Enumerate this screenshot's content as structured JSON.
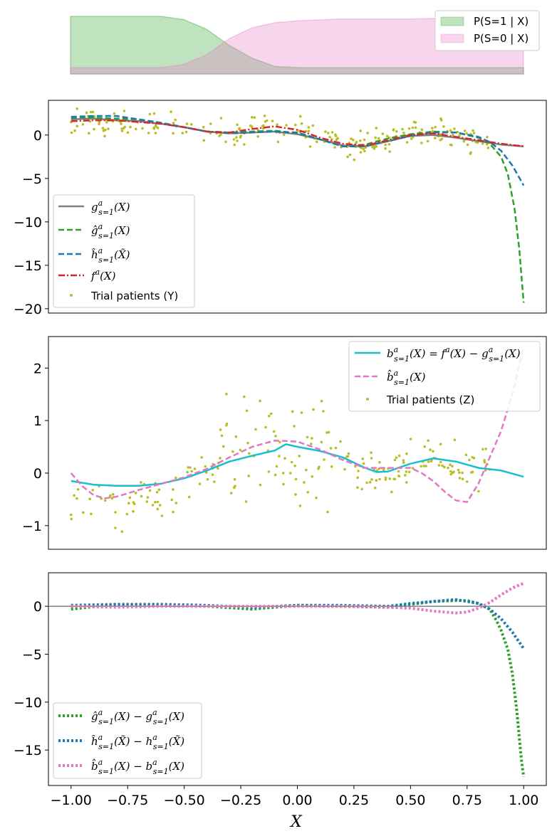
{
  "chart_data": [
    {
      "type": "area",
      "panel": "top",
      "x_range": [
        -1.0,
        1.0
      ],
      "ylim": [
        0,
        1
      ],
      "legend_placement": "top-right",
      "series": [
        {
          "name": "P(S=1 | X)",
          "color": "#2ca02c",
          "x": [
            -1.0,
            -0.8,
            -0.6,
            -0.5,
            -0.4,
            -0.3,
            -0.2,
            -0.1,
            0.0,
            0.2,
            0.5,
            0.8,
            1.0
          ],
          "y": [
            0.9,
            0.9,
            0.9,
            0.85,
            0.7,
            0.45,
            0.25,
            0.12,
            0.1,
            0.1,
            0.1,
            0.1,
            0.1
          ]
        },
        {
          "name": "P(S=0 | X)",
          "color": "#e377c2",
          "x": [
            -1.0,
            -0.8,
            -0.6,
            -0.5,
            -0.4,
            -0.3,
            -0.2,
            -0.1,
            0.0,
            0.2,
            0.5,
            0.8,
            1.0
          ],
          "y": [
            0.1,
            0.1,
            0.1,
            0.15,
            0.3,
            0.55,
            0.72,
            0.8,
            0.83,
            0.86,
            0.86,
            0.88,
            0.9
          ]
        }
      ],
      "overlap_color": "#cfc5c2"
    },
    {
      "type": "line",
      "panel": "second",
      "xlim": [
        -1.1,
        1.1
      ],
      "ylim": [
        -20.5,
        4
      ],
      "yticks": [
        -20,
        -15,
        -10,
        -5,
        0
      ],
      "ytick_labels": [
        "−20",
        "−15",
        "−10",
        "−5",
        "0"
      ],
      "legend_placement": "lower-left",
      "series": [
        {
          "name": "g^a_{s=1}(X)",
          "legend": "g",
          "color": "#7f7f7f",
          "style": "solid",
          "x": [
            -1.0,
            -0.9,
            -0.8,
            -0.7,
            -0.6,
            -0.5,
            -0.4,
            -0.3,
            -0.2,
            -0.1,
            0.0,
            0.1,
            0.2,
            0.3,
            0.4,
            0.5,
            0.6,
            0.7,
            0.8,
            0.9,
            1.0
          ],
          "y": [
            1.8,
            1.9,
            1.7,
            1.6,
            1.3,
            0.9,
            0.4,
            0.2,
            0.3,
            0.4,
            0.1,
            -0.5,
            -1.2,
            -1.3,
            -0.7,
            -0.1,
            0.0,
            -0.3,
            -0.7,
            -1.1,
            -1.3
          ]
        },
        {
          "name": "ĝ^a_{s=1}(X)",
          "legend": "ghat",
          "color": "#2ca02c",
          "style": "dashed",
          "x": [
            -1.0,
            -0.9,
            -0.8,
            -0.7,
            -0.6,
            -0.5,
            -0.4,
            -0.3,
            -0.2,
            -0.1,
            0.0,
            0.1,
            0.2,
            0.3,
            0.4,
            0.5,
            0.6,
            0.7,
            0.8,
            0.85,
            0.9,
            0.93,
            0.96,
            0.98,
            1.0
          ],
          "y": [
            2.0,
            2.0,
            1.9,
            1.8,
            1.4,
            0.9,
            0.4,
            0.3,
            0.4,
            0.5,
            0.2,
            -0.5,
            -1.3,
            -1.1,
            -0.4,
            0.1,
            0.4,
            0.3,
            -0.3,
            -1.0,
            -2.5,
            -4.5,
            -8.5,
            -13.0,
            -19.3
          ]
        },
        {
          "name": "ĥ^a_{s=1}(X̃)",
          "legend": "hhat",
          "color": "#1f77b4",
          "style": "dashed",
          "x": [
            -1.0,
            -0.9,
            -0.8,
            -0.7,
            -0.6,
            -0.5,
            -0.4,
            -0.3,
            -0.2,
            -0.1,
            0.0,
            0.1,
            0.2,
            0.3,
            0.4,
            0.5,
            0.6,
            0.7,
            0.8,
            0.85,
            0.9,
            0.95,
            1.0
          ],
          "y": [
            2.1,
            2.2,
            2.2,
            1.8,
            1.4,
            0.9,
            0.4,
            0.2,
            0.3,
            0.4,
            0.3,
            -0.5,
            -1.3,
            -1.3,
            -0.7,
            -0.1,
            0.3,
            0.3,
            -0.2,
            -0.8,
            -1.8,
            -3.5,
            -5.8
          ]
        },
        {
          "name": "f^a(X)",
          "legend": "f",
          "color": "#d62728",
          "style": "dashdot",
          "x": [
            -1.0,
            -0.9,
            -0.8,
            -0.7,
            -0.6,
            -0.5,
            -0.4,
            -0.3,
            -0.2,
            -0.1,
            0.0,
            0.1,
            0.2,
            0.3,
            0.4,
            0.5,
            0.6,
            0.7,
            0.8,
            0.9,
            1.0
          ],
          "y": [
            1.6,
            1.7,
            1.7,
            1.5,
            1.3,
            0.9,
            0.4,
            0.3,
            0.7,
            1.0,
            0.6,
            -0.3,
            -1.0,
            -1.2,
            -0.6,
            0.0,
            0.2,
            -0.2,
            -0.6,
            -1.0,
            -1.3
          ]
        }
      ],
      "scatter": {
        "name": "Trial patients (Y)",
        "color": "#bcbd22",
        "x_range": [
          -1.0,
          0.85
        ],
        "seed": 7
      }
    },
    {
      "type": "line",
      "panel": "third",
      "xlim": [
        -1.1,
        1.1
      ],
      "ylim": [
        -1.45,
        2.6
      ],
      "yticks": [
        -1,
        0,
        1,
        2
      ],
      "ytick_labels": [
        "−1",
        "0",
        "1",
        "2"
      ],
      "legend_placement": "top-right",
      "series": [
        {
          "name": "b^a_{s=1}(X) = f^a(X) − g^a_{s=1}(X)",
          "legend": "b",
          "color": "#17becf",
          "style": "solid",
          "x": [
            -1.0,
            -0.9,
            -0.8,
            -0.7,
            -0.6,
            -0.5,
            -0.4,
            -0.3,
            -0.2,
            -0.1,
            -0.05,
            0.0,
            0.1,
            0.2,
            0.3,
            0.35,
            0.4,
            0.5,
            0.6,
            0.7,
            0.8,
            0.9,
            1.0
          ],
          "y": [
            -0.15,
            -0.22,
            -0.24,
            -0.24,
            -0.2,
            -0.1,
            0.05,
            0.22,
            0.33,
            0.43,
            0.55,
            0.5,
            0.42,
            0.3,
            0.1,
            0.02,
            0.03,
            0.18,
            0.28,
            0.22,
            0.1,
            0.05,
            -0.07
          ]
        },
        {
          "name": "b̂^a_{s=1}(X)",
          "legend": "bhat",
          "color": "#e377c2",
          "style": "dashed",
          "x": [
            -1.0,
            -0.95,
            -0.9,
            -0.85,
            -0.8,
            -0.7,
            -0.6,
            -0.5,
            -0.4,
            -0.3,
            -0.2,
            -0.1,
            0.0,
            0.1,
            0.2,
            0.3,
            0.4,
            0.5,
            0.55,
            0.6,
            0.65,
            0.7,
            0.75,
            0.8,
            0.85,
            0.9,
            0.95,
            1.0
          ],
          "y": [
            0.0,
            -0.25,
            -0.42,
            -0.48,
            -0.45,
            -0.32,
            -0.2,
            -0.08,
            0.08,
            0.3,
            0.5,
            0.62,
            0.6,
            0.45,
            0.25,
            0.1,
            0.1,
            0.1,
            0.0,
            -0.15,
            -0.35,
            -0.52,
            -0.55,
            -0.2,
            0.3,
            0.8,
            1.5,
            2.4
          ]
        }
      ],
      "scatter": {
        "name": "Trial patients (Z)",
        "color": "#bcbd22",
        "x_range": [
          -1.0,
          0.85
        ],
        "seed": 11
      }
    },
    {
      "type": "line",
      "panel": "bottom",
      "xlim": [
        -1.1,
        1.1
      ],
      "ylim": [
        -18.7,
        3.5
      ],
      "yticks": [
        -15,
        -10,
        -5,
        0
      ],
      "ytick_labels": [
        "−15",
        "−10",
        "−5",
        "0"
      ],
      "xticks": [
        -1.0,
        -0.75,
        -0.5,
        -0.25,
        0.0,
        0.25,
        0.5,
        0.75,
        1.0
      ],
      "xtick_labels": [
        "−1.00",
        "−0.75",
        "−0.50",
        "−0.25",
        "0.00",
        "0.25",
        "0.50",
        "0.75",
        "1.00"
      ],
      "xlabel": "X",
      "hline": 0,
      "legend_placement": "lower-left",
      "series": [
        {
          "name": "ĝ^a_{s=1}(X) − g^a_{s=1}(X)",
          "legend": "gdiff",
          "color": "#2ca02c",
          "style": "dotted",
          "x": [
            -1.0,
            -0.8,
            -0.6,
            -0.4,
            -0.2,
            0.0,
            0.2,
            0.4,
            0.5,
            0.6,
            0.7,
            0.75,
            0.8,
            0.85,
            0.88,
            0.9,
            0.93,
            0.95,
            0.97,
            0.99,
            1.0
          ],
          "y": [
            -0.3,
            0.2,
            0.1,
            0.0,
            -0.3,
            0.1,
            0.0,
            -0.1,
            0.2,
            0.5,
            0.6,
            0.6,
            0.3,
            -0.3,
            -1.5,
            -2.5,
            -4.5,
            -7.0,
            -11.0,
            -16.0,
            -17.8
          ]
        },
        {
          "name": "ĥ^a_{s=1}(X̃) − h^a_{s=1}(X̃)",
          "legend": "hdiff",
          "color": "#1f77b4",
          "style": "dotted",
          "x": [
            -1.0,
            -0.8,
            -0.6,
            -0.4,
            -0.2,
            0.0,
            0.2,
            0.4,
            0.5,
            0.6,
            0.7,
            0.75,
            0.8,
            0.85,
            0.9,
            0.95,
            1.0
          ],
          "y": [
            0.1,
            0.2,
            0.2,
            0.1,
            -0.1,
            0.1,
            0.1,
            0.0,
            0.3,
            0.5,
            0.7,
            0.5,
            0.3,
            -0.3,
            -1.3,
            -2.7,
            -4.4
          ]
        },
        {
          "name": "b̂^a_{s=1}(X) − b^a_{s=1}(X)",
          "legend": "bdiff",
          "color": "#e377c2",
          "style": "dotted",
          "x": [
            -1.0,
            -0.8,
            -0.6,
            -0.4,
            -0.2,
            0.0,
            0.2,
            0.4,
            0.5,
            0.6,
            0.7,
            0.75,
            0.8,
            0.85,
            0.9,
            0.95,
            1.0
          ],
          "y": [
            0.0,
            -0.1,
            0.0,
            0.0,
            0.0,
            0.0,
            0.0,
            -0.1,
            -0.2,
            -0.5,
            -0.7,
            -0.6,
            -0.2,
            0.4,
            1.2,
            1.9,
            2.4
          ]
        }
      ]
    }
  ]
}
